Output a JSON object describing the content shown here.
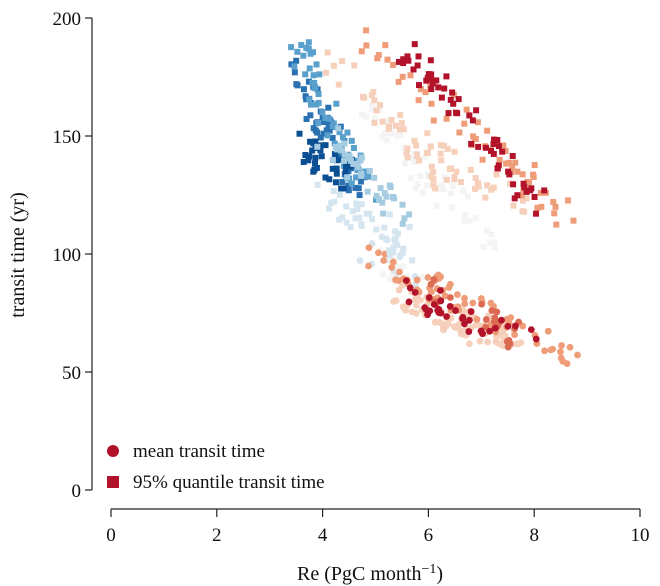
{
  "chart_data": {
    "type": "scatter",
    "title": "",
    "xlabel": "Re (PgC month",
    "xlabel_sup": "−1",
    "xlabel_close": ")",
    "ylabel": "transit time (yr)",
    "xlim": [
      0,
      10
    ],
    "ylim": [
      0,
      200
    ],
    "xticks": [
      "0",
      "2",
      "4",
      "6",
      "8",
      "10"
    ],
    "yticks": [
      "0",
      "50",
      "100",
      "150",
      "200"
    ],
    "legend_position": "bottom-left",
    "palette": [
      "#0a4f93",
      "#2a71b2",
      "#5aa0cd",
      "#a6cce2",
      "#d6e6f0",
      "#f4f4f4",
      "#f6d0bb",
      "#ef9c78",
      "#db6a53",
      "#b3132a"
    ],
    "series": [
      {
        "name": "mean transit time",
        "marker": "circle",
        "legend_color": "#b3132a",
        "groups": [
          {
            "color_index": 4,
            "start": [
              4.9,
              103
            ],
            "end": [
              5.6,
              92
            ],
            "count": 12
          },
          {
            "color_index": 5,
            "start": [
              5.0,
              98
            ],
            "end": [
              6.0,
              88
            ],
            "count": 14
          },
          {
            "color_index": 6,
            "start": [
              5.5,
              82
            ],
            "end": [
              7.8,
              60
            ],
            "count": 80
          },
          {
            "color_index": 7,
            "start": [
              4.8,
              100
            ],
            "end": [
              8.7,
              57
            ],
            "count": 70
          },
          {
            "color_index": 8,
            "start": [
              6.0,
              84
            ],
            "end": [
              7.6,
              65
            ],
            "count": 25
          },
          {
            "color_index": 9,
            "start": [
              5.6,
              83
            ],
            "end": [
              8.0,
              62
            ],
            "count": 35
          }
        ]
      },
      {
        "name": "95% quantile transit time",
        "marker": "square",
        "legend_color": "#b3132a",
        "groups": [
          {
            "color_index": 1,
            "start": [
              3.5,
              178
            ],
            "end": [
              4.7,
              128
            ],
            "count": 60
          },
          {
            "color_index": 2,
            "start": [
              3.5,
              190
            ],
            "end": [
              4.8,
              125
            ],
            "count": 55
          },
          {
            "color_index": 0,
            "start": [
              3.6,
              146
            ],
            "end": [
              4.5,
              132
            ],
            "count": 40
          },
          {
            "color_index": 3,
            "start": [
              4.0,
              150
            ],
            "end": [
              5.6,
              115
            ],
            "count": 40
          },
          {
            "color_index": 4,
            "start": [
              4.1,
              125
            ],
            "end": [
              5.7,
              102
            ],
            "count": 40
          },
          {
            "color_index": 5,
            "start": [
              4.8,
              160
            ],
            "end": [
              7.2,
              105
            ],
            "count": 50
          },
          {
            "color_index": 6,
            "start": [
              4.2,
              182
            ],
            "end": [
              6.6,
              125
            ],
            "count": 40
          },
          {
            "color_index": 6,
            "start": [
              5.5,
              150
            ],
            "end": [
              8.4,
              112
            ],
            "count": 30
          },
          {
            "color_index": 7,
            "start": [
              4.8,
              192
            ],
            "end": [
              8.6,
              116
            ],
            "count": 60
          },
          {
            "color_index": 9,
            "start": [
              5.6,
              186
            ],
            "end": [
              8.2,
              118
            ],
            "count": 60
          }
        ]
      }
    ]
  }
}
